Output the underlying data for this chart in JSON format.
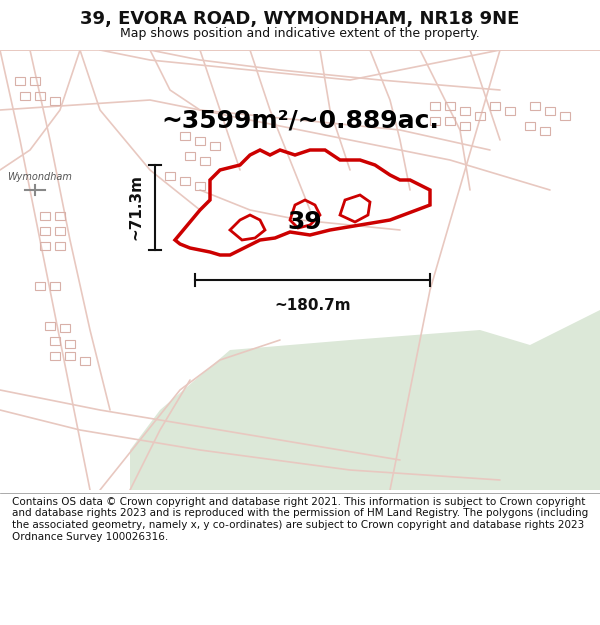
{
  "title": "39, EVORA ROAD, WYMONDHAM, NR18 9NE",
  "subtitle": "Map shows position and indicative extent of the property.",
  "area_text": "~3599m²/~0.889ac.",
  "label_39": "39",
  "dim_height": "~71.3m",
  "dim_width": "~180.7m",
  "footer": "Contains OS data © Crown copyright and database right 2021. This information is subject to Crown copyright and database rights 2023 and is reproduced with the permission of HM Land Registry. The polygons (including the associated geometry, namely x, y co-ordinates) are subject to Crown copyright and database rights 2023 Ordnance Survey 100026316.",
  "bg_color": "#f5f0eb",
  "map_bg": "#f2ede8",
  "green_area": "#dce8d8",
  "road_color": "#e8c8c0",
  "property_color": "#cc0000",
  "dim_color": "#111111",
  "title_color": "#111111",
  "footer_color": "#111111",
  "header_bg": "#ffffff",
  "footer_bg": "#ffffff"
}
